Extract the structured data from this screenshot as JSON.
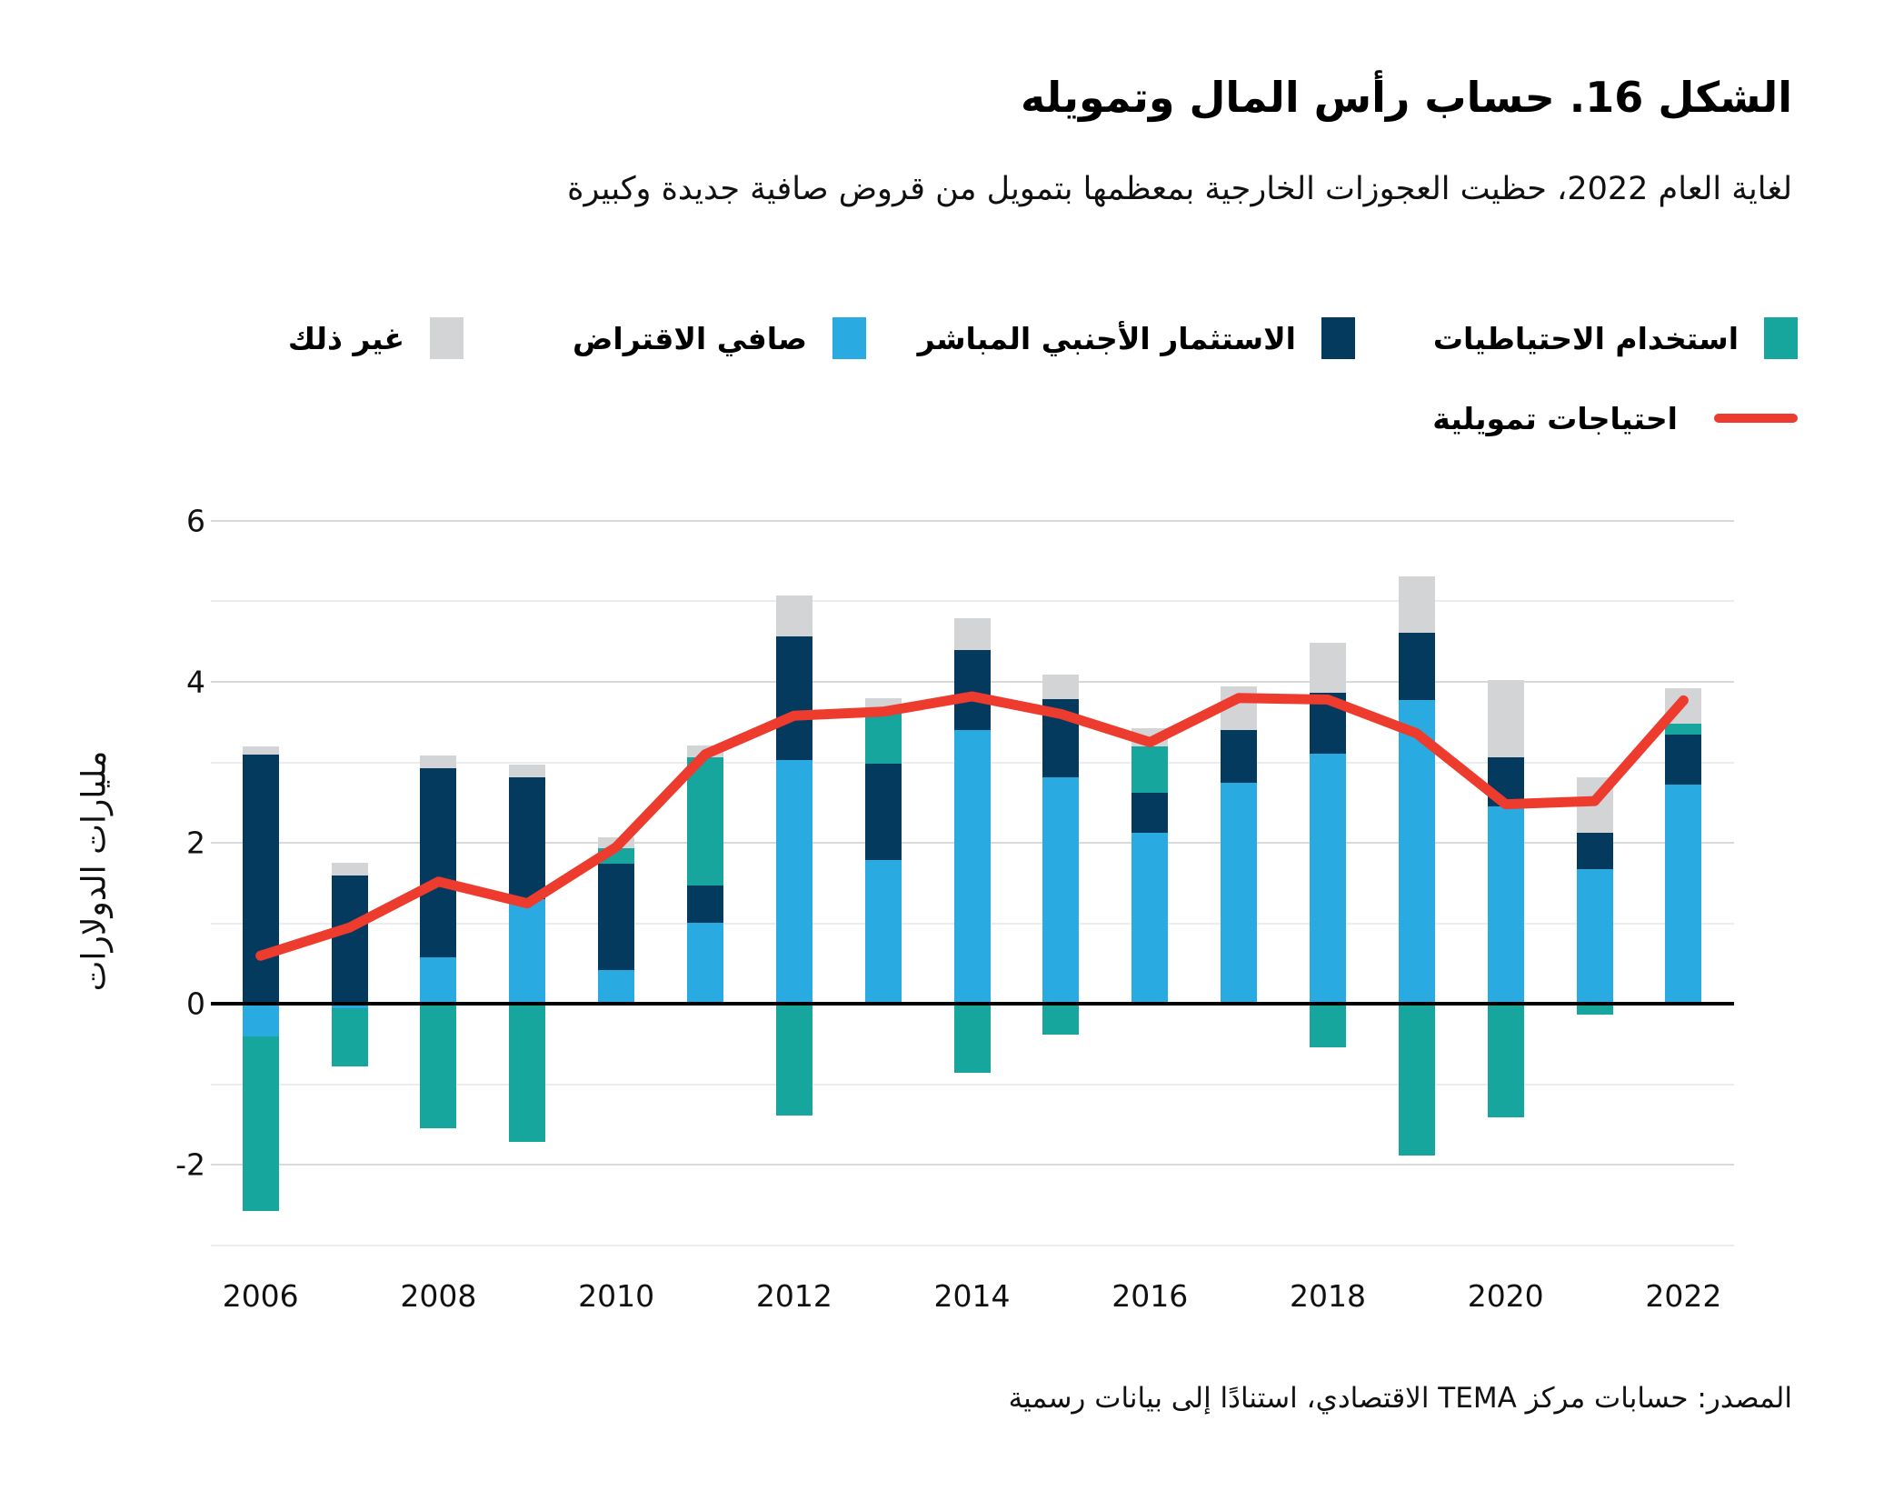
{
  "title": "الشكل 16. حساب رأس المال وتمويله",
  "subtitle": "لغاية العام 2022، حظيت العجوزات الخارجية بمعظمها بتمويل من قروض صافية جديدة وكبيرة",
  "source": "المصدر: حسابات مركز TEMA الاقتصادي، استنادًا إلى بيانات رسمية",
  "colors": {
    "reserves": "#17A69E",
    "fdi": "#043A5E",
    "borrowing": "#29ABE2",
    "other": "#D2D4D6",
    "line": "#ED3B2E"
  },
  "legend": {
    "items": [
      {
        "key": "reserves",
        "label": "استخدام الاحتياطيات"
      },
      {
        "key": "fdi",
        "label": "الاستثمار الأجنبي المباشر"
      },
      {
        "key": "borrowing",
        "label": "صافي الاقتراض"
      },
      {
        "key": "other",
        "label": "غير ذلك"
      }
    ],
    "line_label": "احتياجات تمويلية"
  },
  "y_axis": {
    "label": "مليارات الدولارات",
    "ticks": [
      {
        "label": "6",
        "value": 6
      },
      {
        "label": "4",
        "value": 4
      },
      {
        "label": "2",
        "value": 2
      },
      {
        "label": "0",
        "value": 0
      },
      {
        "label": "-2",
        "value": -2
      }
    ]
  },
  "x_axis": {
    "ticks": [
      "2006",
      "2008",
      "2010",
      "2012",
      "2014",
      "2016",
      "2018",
      "2020",
      "2022"
    ]
  },
  "chart_data": {
    "type": "bar",
    "stacked": true,
    "categories": [
      2006,
      2007,
      2008,
      2009,
      2010,
      2011,
      2012,
      2013,
      2014,
      2015,
      2016,
      2017,
      2018,
      2019,
      2020,
      2021,
      2022
    ],
    "series": [
      {
        "name": "صافي الاقتراض",
        "color_key": "borrowing",
        "values": [
          -0.4,
          -0.05,
          0.58,
          1.3,
          0.42,
          1.01,
          3.03,
          1.79,
          3.4,
          2.82,
          2.13,
          2.75,
          3.11,
          3.77,
          2.45,
          1.67,
          2.72
        ]
      },
      {
        "name": "الاستثمار الأجنبي المباشر",
        "color_key": "fdi",
        "values": [
          3.1,
          1.6,
          2.35,
          1.52,
          1.32,
          0.46,
          1.54,
          1.19,
          1.0,
          0.97,
          0.49,
          0.65,
          0.76,
          0.84,
          0.61,
          0.46,
          0.62
        ]
      },
      {
        "name": "استخدام الاحتياطيات",
        "color_key": "reserves",
        "values": [
          -2.17,
          -0.73,
          -1.54,
          -1.71,
          0.19,
          1.59,
          -1.38,
          0.69,
          -0.85,
          -0.38,
          0.58,
          0.0,
          -0.54,
          -1.88,
          -1.41,
          -0.13,
          0.14
        ]
      },
      {
        "name": "غير ذلك",
        "color_key": "other",
        "values": [
          0.1,
          0.15,
          0.16,
          0.15,
          0.14,
          0.15,
          0.5,
          0.13,
          0.39,
          0.3,
          0.22,
          0.54,
          0.62,
          0.7,
          0.96,
          0.68,
          0.44
        ]
      }
    ],
    "line_series": {
      "name": "احتياجات تمويلية",
      "color_key": "line",
      "values": [
        0.6,
        0.95,
        1.52,
        1.25,
        1.95,
        3.1,
        3.58,
        3.63,
        3.82,
        3.6,
        3.25,
        3.8,
        3.78,
        3.36,
        2.48,
        2.52,
        3.77
      ]
    },
    "title": "الشكل 16. حساب رأس المال وتمويله",
    "ylabel": "مليارات الدولارات",
    "ylim": [
      -3.3,
      6.2
    ],
    "y_gridlines_major": [
      6,
      4,
      2,
      -2
    ],
    "y_gridlines_minor": [
      5,
      3,
      1,
      -1,
      -3
    ],
    "legend_position": "top-right",
    "grid": true
  }
}
